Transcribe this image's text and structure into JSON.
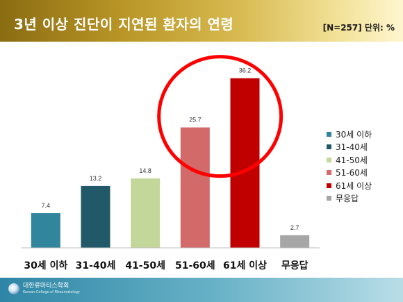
{
  "header": {
    "title": "3년 이상 진단이 지연된 환자의 연령",
    "unit_note": "[N=257] 단위: %"
  },
  "chart_data": {
    "type": "bar",
    "categories": [
      "30세 이하",
      "31-40세",
      "41-50세",
      "51-60세",
      "61세 이상",
      "무응답"
    ],
    "values": [
      7.4,
      13.2,
      14.8,
      25.7,
      36.2,
      2.7
    ],
    "colors": [
      "#31859c",
      "#215968",
      "#c4d79b",
      "#d26a6a",
      "#c00000",
      "#a6a6a6"
    ],
    "ylim": [
      0,
      40
    ],
    "grid": false,
    "legend_position": "right",
    "highlight": {
      "shape": "circle",
      "color": "#ff0000",
      "categories": [
        "51-60세",
        "61세 이상"
      ]
    }
  },
  "footer": {
    "logo_text": "대한류마티스학회",
    "logo_sub": "Korean College of Rheumatology"
  }
}
